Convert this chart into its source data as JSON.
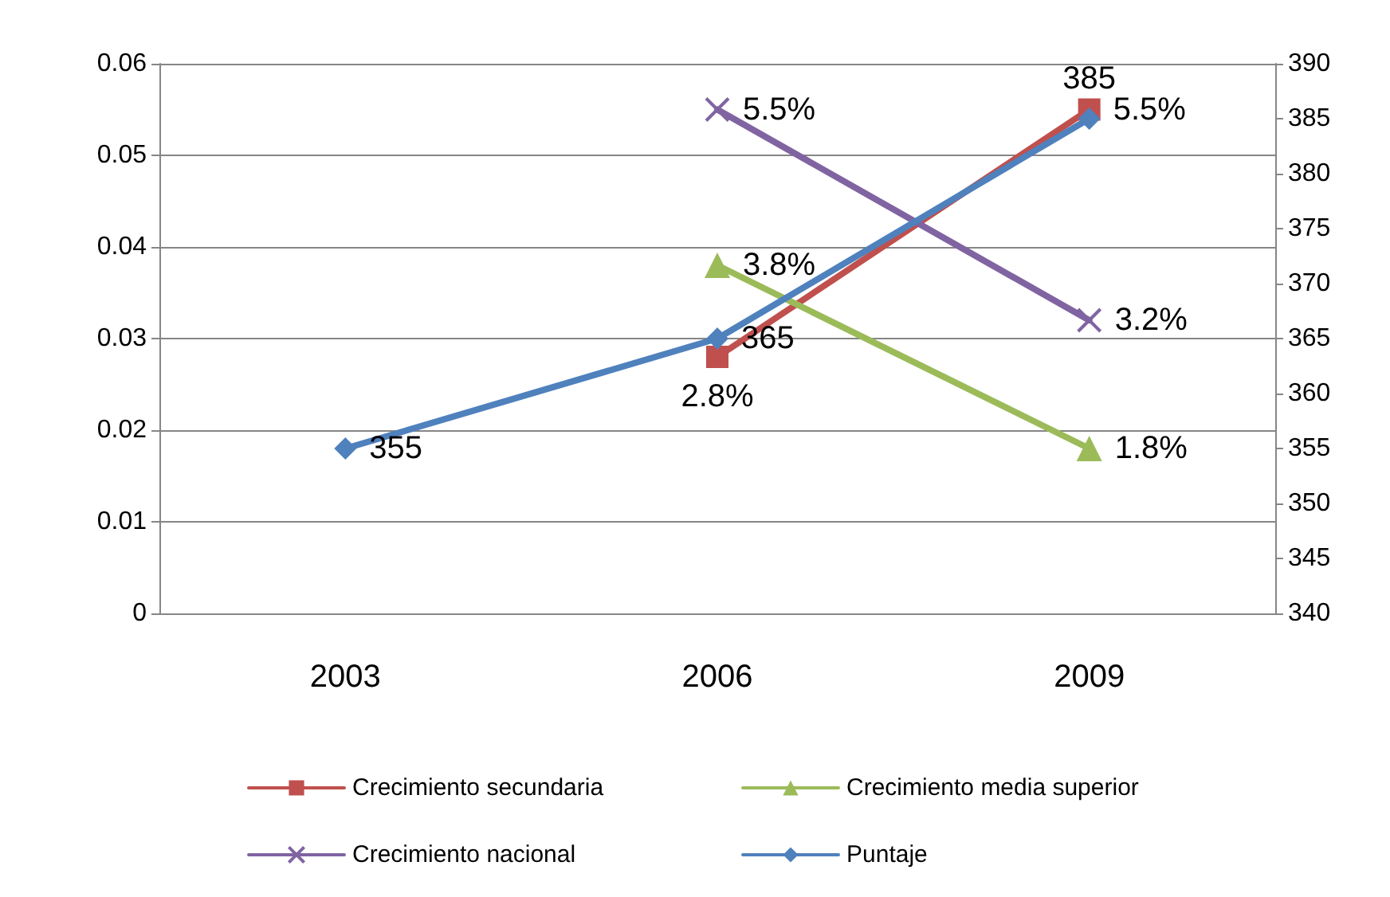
{
  "chart_data": {
    "type": "line",
    "categories": [
      "2003",
      "2006",
      "2009"
    ],
    "series": [
      {
        "name": "Crecimiento secundaria",
        "color": "#c0504d",
        "marker": "square",
        "values": [
          null,
          0.028,
          0.055
        ],
        "value_labels": [
          null,
          "2.8%",
          "5.5%"
        ]
      },
      {
        "name": "Crecimiento media superior",
        "color": "#9bbb59",
        "marker": "triangle",
        "values": [
          null,
          0.038,
          0.018
        ],
        "value_labels": [
          null,
          "3.8%",
          "1.8%"
        ]
      },
      {
        "name": "Crecimiento nacional",
        "color": "#8064a2",
        "marker": "cross",
        "values": [
          null,
          0.055,
          0.032
        ],
        "value_labels": [
          null,
          "5.5%",
          "3.2%"
        ]
      },
      {
        "name": "Puntaje",
        "color": "#4f81bd",
        "marker": "diamond",
        "axis": "y2",
        "values": [
          355,
          365,
          385
        ],
        "value_labels": [
          "355",
          "365",
          "385"
        ]
      }
    ],
    "ylim": [
      0,
      0.06
    ],
    "yticks": [
      0,
      0.01,
      0.02,
      0.03,
      0.04,
      0.05,
      0.06
    ],
    "y2lim": [
      340,
      390
    ],
    "y2ticks": [
      340,
      345,
      350,
      355,
      360,
      365,
      370,
      375,
      380,
      385,
      390
    ],
    "grid": "y",
    "legend": "bottom"
  }
}
